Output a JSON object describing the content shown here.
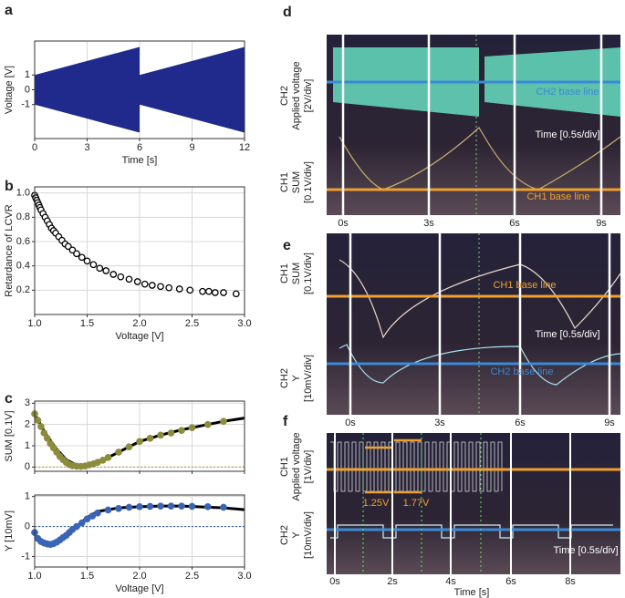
{
  "chart_data": [
    {
      "type": "area",
      "panel": "a",
      "xlabel": "Time [s]",
      "ylabel": "Voltage [V]",
      "xlim": [
        0,
        12
      ],
      "ylim": [
        -3.3,
        3.3
      ],
      "xticks": [
        0,
        3,
        6,
        9,
        12
      ],
      "yticks": [
        -1,
        0,
        1
      ],
      "grid": true,
      "series": [
        {
          "type": "area",
          "color": "#1f2a8c",
          "x": [
            0,
            6,
            6,
            12
          ],
          "upper": [
            1,
            2.9,
            1,
            2.9
          ],
          "lower": [
            -1,
            -2.9,
            -1,
            -2.9
          ]
        }
      ]
    },
    {
      "type": "scatter",
      "panel": "b",
      "xlabel": "Voltage [V]",
      "ylabel": "Retardance of LCVR",
      "xlim": [
        1.0,
        3.0
      ],
      "ylim": [
        0,
        1.05
      ],
      "xticks": [
        {
          "value": 1.0,
          "label": "1.0"
        },
        1.5,
        {
          "value": 2.0,
          "label": "2.0"
        },
        2.5,
        {
          "value": 3.0,
          "label": "3.0"
        }
      ],
      "yticks": [
        0.2,
        0.4,
        0.6,
        0.8,
        {
          "value": 1.0,
          "label": "1.0"
        }
      ],
      "grid": true,
      "series": [
        {
          "type": "scatter",
          "marker": "hollow",
          "color": "#000000",
          "x": [
            1.0,
            1.01,
            1.02,
            1.03,
            1.04,
            1.05,
            1.06,
            1.08,
            1.1,
            1.12,
            1.14,
            1.16,
            1.18,
            1.2,
            1.23,
            1.26,
            1.29,
            1.32,
            1.36,
            1.4,
            1.45,
            1.5,
            1.56,
            1.62,
            1.68,
            1.75,
            1.82,
            1.9,
            1.98,
            2.05,
            2.12,
            2.2,
            2.28,
            2.38,
            2.48,
            2.6,
            2.66,
            2.72,
            2.8,
            2.92
          ],
          "values": [
            0.98,
            0.96,
            0.94,
            0.92,
            0.9,
            0.88,
            0.86,
            0.83,
            0.8,
            0.77,
            0.74,
            0.71,
            0.69,
            0.67,
            0.64,
            0.61,
            0.58,
            0.56,
            0.53,
            0.5,
            0.47,
            0.44,
            0.41,
            0.38,
            0.36,
            0.33,
            0.31,
            0.29,
            0.27,
            0.25,
            0.24,
            0.23,
            0.22,
            0.21,
            0.2,
            0.19,
            0.19,
            0.18,
            0.18,
            0.17
          ]
        }
      ]
    },
    {
      "type": "line",
      "panel": "c",
      "ylabel": "SUM [0.1V]",
      "xlim": [
        1.0,
        3.0
      ],
      "ylim": [
        -0.2,
        3.1
      ],
      "xticks": [
        {
          "value": 1.0,
          "label": "1.0"
        },
        1.5,
        {
          "value": 2.0,
          "label": "2.0"
        },
        2.5,
        {
          "value": 3.0,
          "label": "3.0"
        }
      ],
      "show_xtick_labels": false,
      "yticks": [
        0,
        1,
        2,
        3
      ],
      "grid": true,
      "reference_line": {
        "value": 0,
        "color": "#d49a3a"
      },
      "series": [
        {
          "type": "line",
          "color": "#000000",
          "x": [
            1.0,
            1.1,
            1.2,
            1.3,
            1.4,
            1.5,
            1.6,
            1.8,
            2.0,
            2.2,
            2.4,
            2.6,
            2.8,
            3.0
          ],
          "values": [
            2.5,
            1.6,
            0.9,
            0.35,
            0.08,
            0.05,
            0.2,
            0.7,
            1.2,
            1.5,
            1.75,
            1.95,
            2.15,
            2.3
          ]
        },
        {
          "type": "scatter",
          "marker": "filled",
          "color": "#8c8c3c",
          "x": [
            1.0,
            1.03,
            1.06,
            1.09,
            1.12,
            1.15,
            1.18,
            1.21,
            1.24,
            1.27,
            1.3,
            1.33,
            1.36,
            1.4,
            1.44,
            1.48,
            1.52,
            1.56,
            1.6,
            1.65,
            1.7,
            1.8,
            1.9,
            2.0,
            2.1,
            2.2,
            2.3,
            2.4,
            2.5,
            2.65,
            2.8
          ],
          "values": [
            2.5,
            2.2,
            1.9,
            1.6,
            1.35,
            1.1,
            0.9,
            0.7,
            0.5,
            0.35,
            0.22,
            0.12,
            0.06,
            0.04,
            0.03,
            0.05,
            0.1,
            0.15,
            0.22,
            0.32,
            0.45,
            0.7,
            0.95,
            1.2,
            1.35,
            1.5,
            1.6,
            1.72,
            1.85,
            2.0,
            2.15
          ]
        }
      ]
    },
    {
      "type": "line",
      "xlabel": "Voltage [V]",
      "ylabel": "Y [10mV]",
      "xlim": [
        1.0,
        3.0
      ],
      "ylim": [
        -1.35,
        1.05
      ],
      "xticks": [
        {
          "value": 1.0,
          "label": "1.0"
        },
        1.5,
        {
          "value": 2.0,
          "label": "2.0"
        },
        2.5,
        {
          "value": 3.0,
          "label": "3.0"
        }
      ],
      "yticks": [
        -1,
        0,
        1
      ],
      "grid": true,
      "reference_line": {
        "value": 0,
        "color": "#3a64b4"
      },
      "series": [
        {
          "type": "line",
          "color": "#000000",
          "x": [
            1.0,
            1.05,
            1.1,
            1.15,
            1.2,
            1.3,
            1.4,
            1.5,
            1.6,
            1.8,
            2.0,
            2.2,
            2.4,
            2.6,
            2.8,
            3.0
          ],
          "values": [
            -0.25,
            -0.5,
            -0.58,
            -0.6,
            -0.55,
            -0.3,
            0.0,
            0.3,
            0.5,
            0.62,
            0.66,
            0.68,
            0.68,
            0.65,
            0.62,
            0.56
          ]
        },
        {
          "type": "scatter",
          "marker": "filled",
          "color": "#3a64b4",
          "x": [
            1.0,
            1.03,
            1.06,
            1.09,
            1.12,
            1.15,
            1.18,
            1.21,
            1.24,
            1.27,
            1.3,
            1.33,
            1.36,
            1.4,
            1.45,
            1.5,
            1.55,
            1.6,
            1.7,
            1.8,
            1.9,
            2.0,
            2.1,
            2.2,
            2.3,
            2.4,
            2.5,
            2.65,
            2.8
          ],
          "values": [
            -0.2,
            -0.4,
            -0.5,
            -0.55,
            -0.58,
            -0.6,
            -0.57,
            -0.52,
            -0.45,
            -0.37,
            -0.3,
            -0.2,
            -0.1,
            0.0,
            0.12,
            0.25,
            0.35,
            0.45,
            0.55,
            0.6,
            0.64,
            0.66,
            0.67,
            0.68,
            0.68,
            0.68,
            0.67,
            0.66,
            0.64
          ]
        }
      ]
    }
  ],
  "scope_panels": [
    {
      "panel": "d",
      "channels": [
        [
          "CH2",
          "Applied voltage",
          "[2V/div]"
        ],
        [
          "CH1",
          "SUM",
          "[0.1V/div]"
        ]
      ],
      "annotations": [
        "CH2 base line",
        "Time [0.5s/div]",
        "CH1 base line"
      ],
      "time_labels": [
        "0s",
        "3s",
        "6s",
        "9s"
      ]
    },
    {
      "panel": "e",
      "channels": [
        [
          "CH1",
          "SUM",
          "[0.1V/div]"
        ],
        [
          "CH2",
          "Y",
          "[10mV/div]"
        ]
      ],
      "annotations": [
        "CH1 base line",
        "Time [0.5s/div]",
        "CH2 base line"
      ],
      "time_labels": [
        "0s",
        "3s",
        "6s",
        "9s"
      ]
    },
    {
      "panel": "f",
      "channels": [
        [
          "CH1",
          "Applied voltage",
          "[1V/div]"
        ],
        [
          "CH2",
          "Y",
          "[10mV/div]"
        ]
      ],
      "annotations": [
        "1.25V",
        "1.77V",
        "Time [0.5s/div]"
      ],
      "time_labels": [
        "0s",
        "2s",
        "4s",
        "6s",
        "8s"
      ],
      "xlabel": "Time [s]"
    }
  ]
}
